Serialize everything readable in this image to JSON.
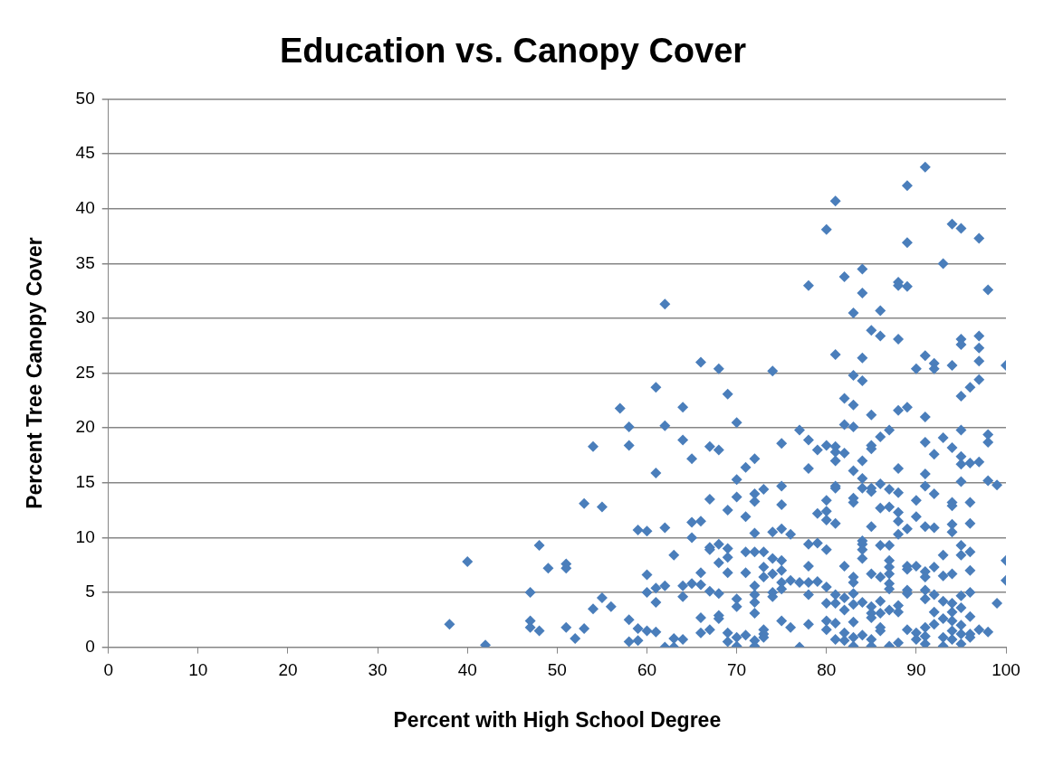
{
  "chart_data": {
    "type": "scatter",
    "title": "Education vs. Canopy Cover",
    "xlabel": "Percent with High School Degree",
    "ylabel": "Percent Tree Canopy Cover",
    "xlim": [
      0,
      100
    ],
    "xticks": [
      0,
      10,
      20,
      30,
      40,
      50,
      60,
      70,
      80,
      90,
      100
    ],
    "ylim": [
      0,
      50
    ],
    "yticks": [
      0,
      5,
      10,
      15,
      20,
      25,
      30,
      35,
      40,
      45,
      50
    ],
    "grid": "y",
    "legend": false,
    "marker": "diamond",
    "series": [
      {
        "color": "#4a7ebb",
        "x": [
          38,
          40,
          42,
          47,
          47,
          47,
          48,
          48,
          49,
          51,
          51,
          51,
          52,
          53,
          53,
          54,
          54,
          55,
          55,
          56,
          57,
          58,
          58,
          58,
          58,
          59,
          59,
          59,
          60,
          60,
          60,
          60,
          61,
          61,
          61,
          61,
          61,
          62,
          62,
          62,
          62,
          62,
          63,
          63,
          63,
          64,
          64,
          64,
          64,
          64,
          65,
          65,
          65,
          65,
          66,
          66,
          66,
          66,
          66,
          66,
          67,
          67,
          67,
          67,
          67,
          67,
          68,
          68,
          68,
          68,
          68,
          68,
          68,
          69,
          69,
          69,
          69,
          69,
          69,
          69,
          70,
          70,
          70,
          70,
          70,
          70,
          70,
          71,
          71,
          71,
          71,
          71,
          72,
          72,
          72,
          72,
          72,
          72,
          72,
          72,
          72,
          72,
          72,
          73,
          73,
          73,
          73,
          73,
          73,
          73,
          74,
          74,
          74,
          74,
          74,
          74,
          75,
          75,
          75,
          75,
          75,
          75,
          75,
          75,
          75,
          76,
          76,
          76,
          77,
          77,
          77,
          78,
          78,
          78,
          78,
          78,
          78,
          78,
          78,
          79,
          79,
          79,
          79,
          80,
          80,
          80,
          80,
          80,
          80,
          80,
          80,
          80,
          80,
          81,
          81,
          81,
          81,
          81,
          81,
          81,
          81,
          81,
          81,
          81,
          81,
          82,
          82,
          82,
          82,
          82,
          82,
          82,
          82,
          82,
          83,
          83,
          83,
          83,
          83,
          83,
          83,
          83,
          83,
          83,
          83,
          83,
          83,
          83,
          84,
          84,
          84,
          84,
          84,
          84,
          84,
          84,
          84,
          84,
          84,
          84,
          84,
          85,
          85,
          85,
          85,
          85,
          85,
          85,
          85,
          85,
          85,
          85,
          85,
          85,
          86,
          86,
          86,
          86,
          86,
          86,
          86,
          86,
          86,
          86,
          86,
          87,
          87,
          87,
          87,
          87,
          87,
          87,
          87,
          87,
          87,
          87,
          88,
          88,
          88,
          88,
          88,
          88,
          88,
          88,
          88,
          88,
          88,
          88,
          89,
          89,
          89,
          89,
          89,
          89,
          89,
          89,
          89,
          89,
          90,
          90,
          90,
          90,
          90,
          90,
          91,
          91,
          91,
          91,
          91,
          91,
          91,
          91,
          91,
          91,
          91,
          91,
          91,
          91,
          92,
          92,
          92,
          92,
          92,
          92,
          92,
          92,
          92,
          93,
          93,
          93,
          93,
          93,
          93,
          93,
          93,
          94,
          94,
          94,
          94,
          94,
          94,
          94,
          94,
          94,
          94,
          94,
          94,
          94,
          95,
          95,
          95,
          95,
          95,
          95,
          95,
          95,
          95,
          95,
          95,
          95,
          95,
          95,
          95,
          96,
          96,
          96,
          96,
          96,
          96,
          96,
          96,
          96,
          96,
          97,
          97,
          97,
          97,
          97,
          97,
          97,
          98,
          98,
          98,
          98,
          98,
          99,
          99,
          100,
          100,
          100
        ],
        "values": [
          2.1,
          7.8,
          0.2,
          5.0,
          2.4,
          1.8,
          1.5,
          9.3,
          7.2,
          7.6,
          7.2,
          1.8,
          0.8,
          1.7,
          13.1,
          18.3,
          3.5,
          4.5,
          12.8,
          3.7,
          21.8,
          20.1,
          18.4,
          2.5,
          0.5,
          10.7,
          1.7,
          0.6,
          10.6,
          6.6,
          5.0,
          1.5,
          23.7,
          15.9,
          5.4,
          4.1,
          1.4,
          31.3,
          20.2,
          10.9,
          5.6,
          0.0,
          8.4,
          0.8,
          0.0,
          21.9,
          18.9,
          5.6,
          4.6,
          0.7,
          17.2,
          11.4,
          10.0,
          5.8,
          26.0,
          11.5,
          6.8,
          5.7,
          2.7,
          1.3,
          18.3,
          13.5,
          9.1,
          8.9,
          5.1,
          1.6,
          25.4,
          18.0,
          9.4,
          7.7,
          4.9,
          2.9,
          2.6,
          23.1,
          12.5,
          9.0,
          8.2,
          6.8,
          1.3,
          0.5,
          20.5,
          15.3,
          13.7,
          4.4,
          3.7,
          0.9,
          0.1,
          16.4,
          11.9,
          8.7,
          6.8,
          1.1,
          17.2,
          14.0,
          13.3,
          10.4,
          8.7,
          5.6,
          4.8,
          4.1,
          3.1,
          0.6,
          0.1,
          14.4,
          8.7,
          7.3,
          6.4,
          1.6,
          1.2,
          0.9,
          25.2,
          10.5,
          8.1,
          6.7,
          5.0,
          4.6,
          18.6,
          14.7,
          13.0,
          10.8,
          7.9,
          7.0,
          5.9,
          5.3,
          2.4,
          10.3,
          6.1,
          1.8,
          19.8,
          5.9,
          0.0,
          33.0,
          18.9,
          16.3,
          9.4,
          7.4,
          5.9,
          4.8,
          2.1,
          18.0,
          12.2,
          9.5,
          6.0,
          38.1,
          18.4,
          13.4,
          12.4,
          11.6,
          8.9,
          5.5,
          4.0,
          2.4,
          1.6,
          40.7,
          26.7,
          18.3,
          17.8,
          17.0,
          14.7,
          14.5,
          11.3,
          4.8,
          4.0,
          2.2,
          0.7,
          33.8,
          22.7,
          20.3,
          17.7,
          7.4,
          4.5,
          3.4,
          1.3,
          0.6,
          30.5,
          24.8,
          22.1,
          20.1,
          16.1,
          13.6,
          13.2,
          6.4,
          5.9,
          4.9,
          3.9,
          2.3,
          0.9,
          0.1,
          34.5,
          32.3,
          26.4,
          24.3,
          17.0,
          15.4,
          14.5,
          9.7,
          9.4,
          8.9,
          8.1,
          4.1,
          1.1,
          28.9,
          21.2,
          18.4,
          18.1,
          14.5,
          14.2,
          11.0,
          6.7,
          3.7,
          3.1,
          2.7,
          0.7,
          0.1,
          30.7,
          28.4,
          19.2,
          14.9,
          12.7,
          9.3,
          6.4,
          4.2,
          3.1,
          1.8,
          1.5,
          19.8,
          14.4,
          12.8,
          9.3,
          7.9,
          7.3,
          6.7,
          5.8,
          5.3,
          3.4,
          0.1,
          33.3,
          33.0,
          28.1,
          21.6,
          16.3,
          14.1,
          12.3,
          11.5,
          10.3,
          3.8,
          3.2,
          0.4,
          42.1,
          36.9,
          32.9,
          21.9,
          10.8,
          7.4,
          7.1,
          5.2,
          4.9,
          1.6,
          25.4,
          13.4,
          11.9,
          7.4,
          1.3,
          0.7,
          43.8,
          26.6,
          21.0,
          18.7,
          15.8,
          14.7,
          11.0,
          6.9,
          6.4,
          5.2,
          4.4,
          1.8,
          1.0,
          0.3,
          25.9,
          25.4,
          17.6,
          14.0,
          10.9,
          7.3,
          4.8,
          3.2,
          2.1,
          35.0,
          19.1,
          8.4,
          6.5,
          4.2,
          2.6,
          0.9,
          0.1,
          38.6,
          25.7,
          18.2,
          13.2,
          12.9,
          11.2,
          10.5,
          6.7,
          4.0,
          3.2,
          2.4,
          1.5,
          0.7,
          38.2,
          28.1,
          27.6,
          22.9,
          19.8,
          17.4,
          16.7,
          15.1,
          9.3,
          8.4,
          4.7,
          3.6,
          2.0,
          1.2,
          0.3,
          23.7,
          16.8,
          13.2,
          11.3,
          8.7,
          7.0,
          5.0,
          2.8,
          1.2,
          0.9,
          28.4,
          27.3,
          26.1,
          24.4,
          16.9,
          37.3,
          1.6,
          32.6,
          19.4,
          18.7,
          15.2,
          1.4,
          14.8,
          4.0,
          25.7,
          7.9,
          6.1
        ]
      }
    ]
  }
}
